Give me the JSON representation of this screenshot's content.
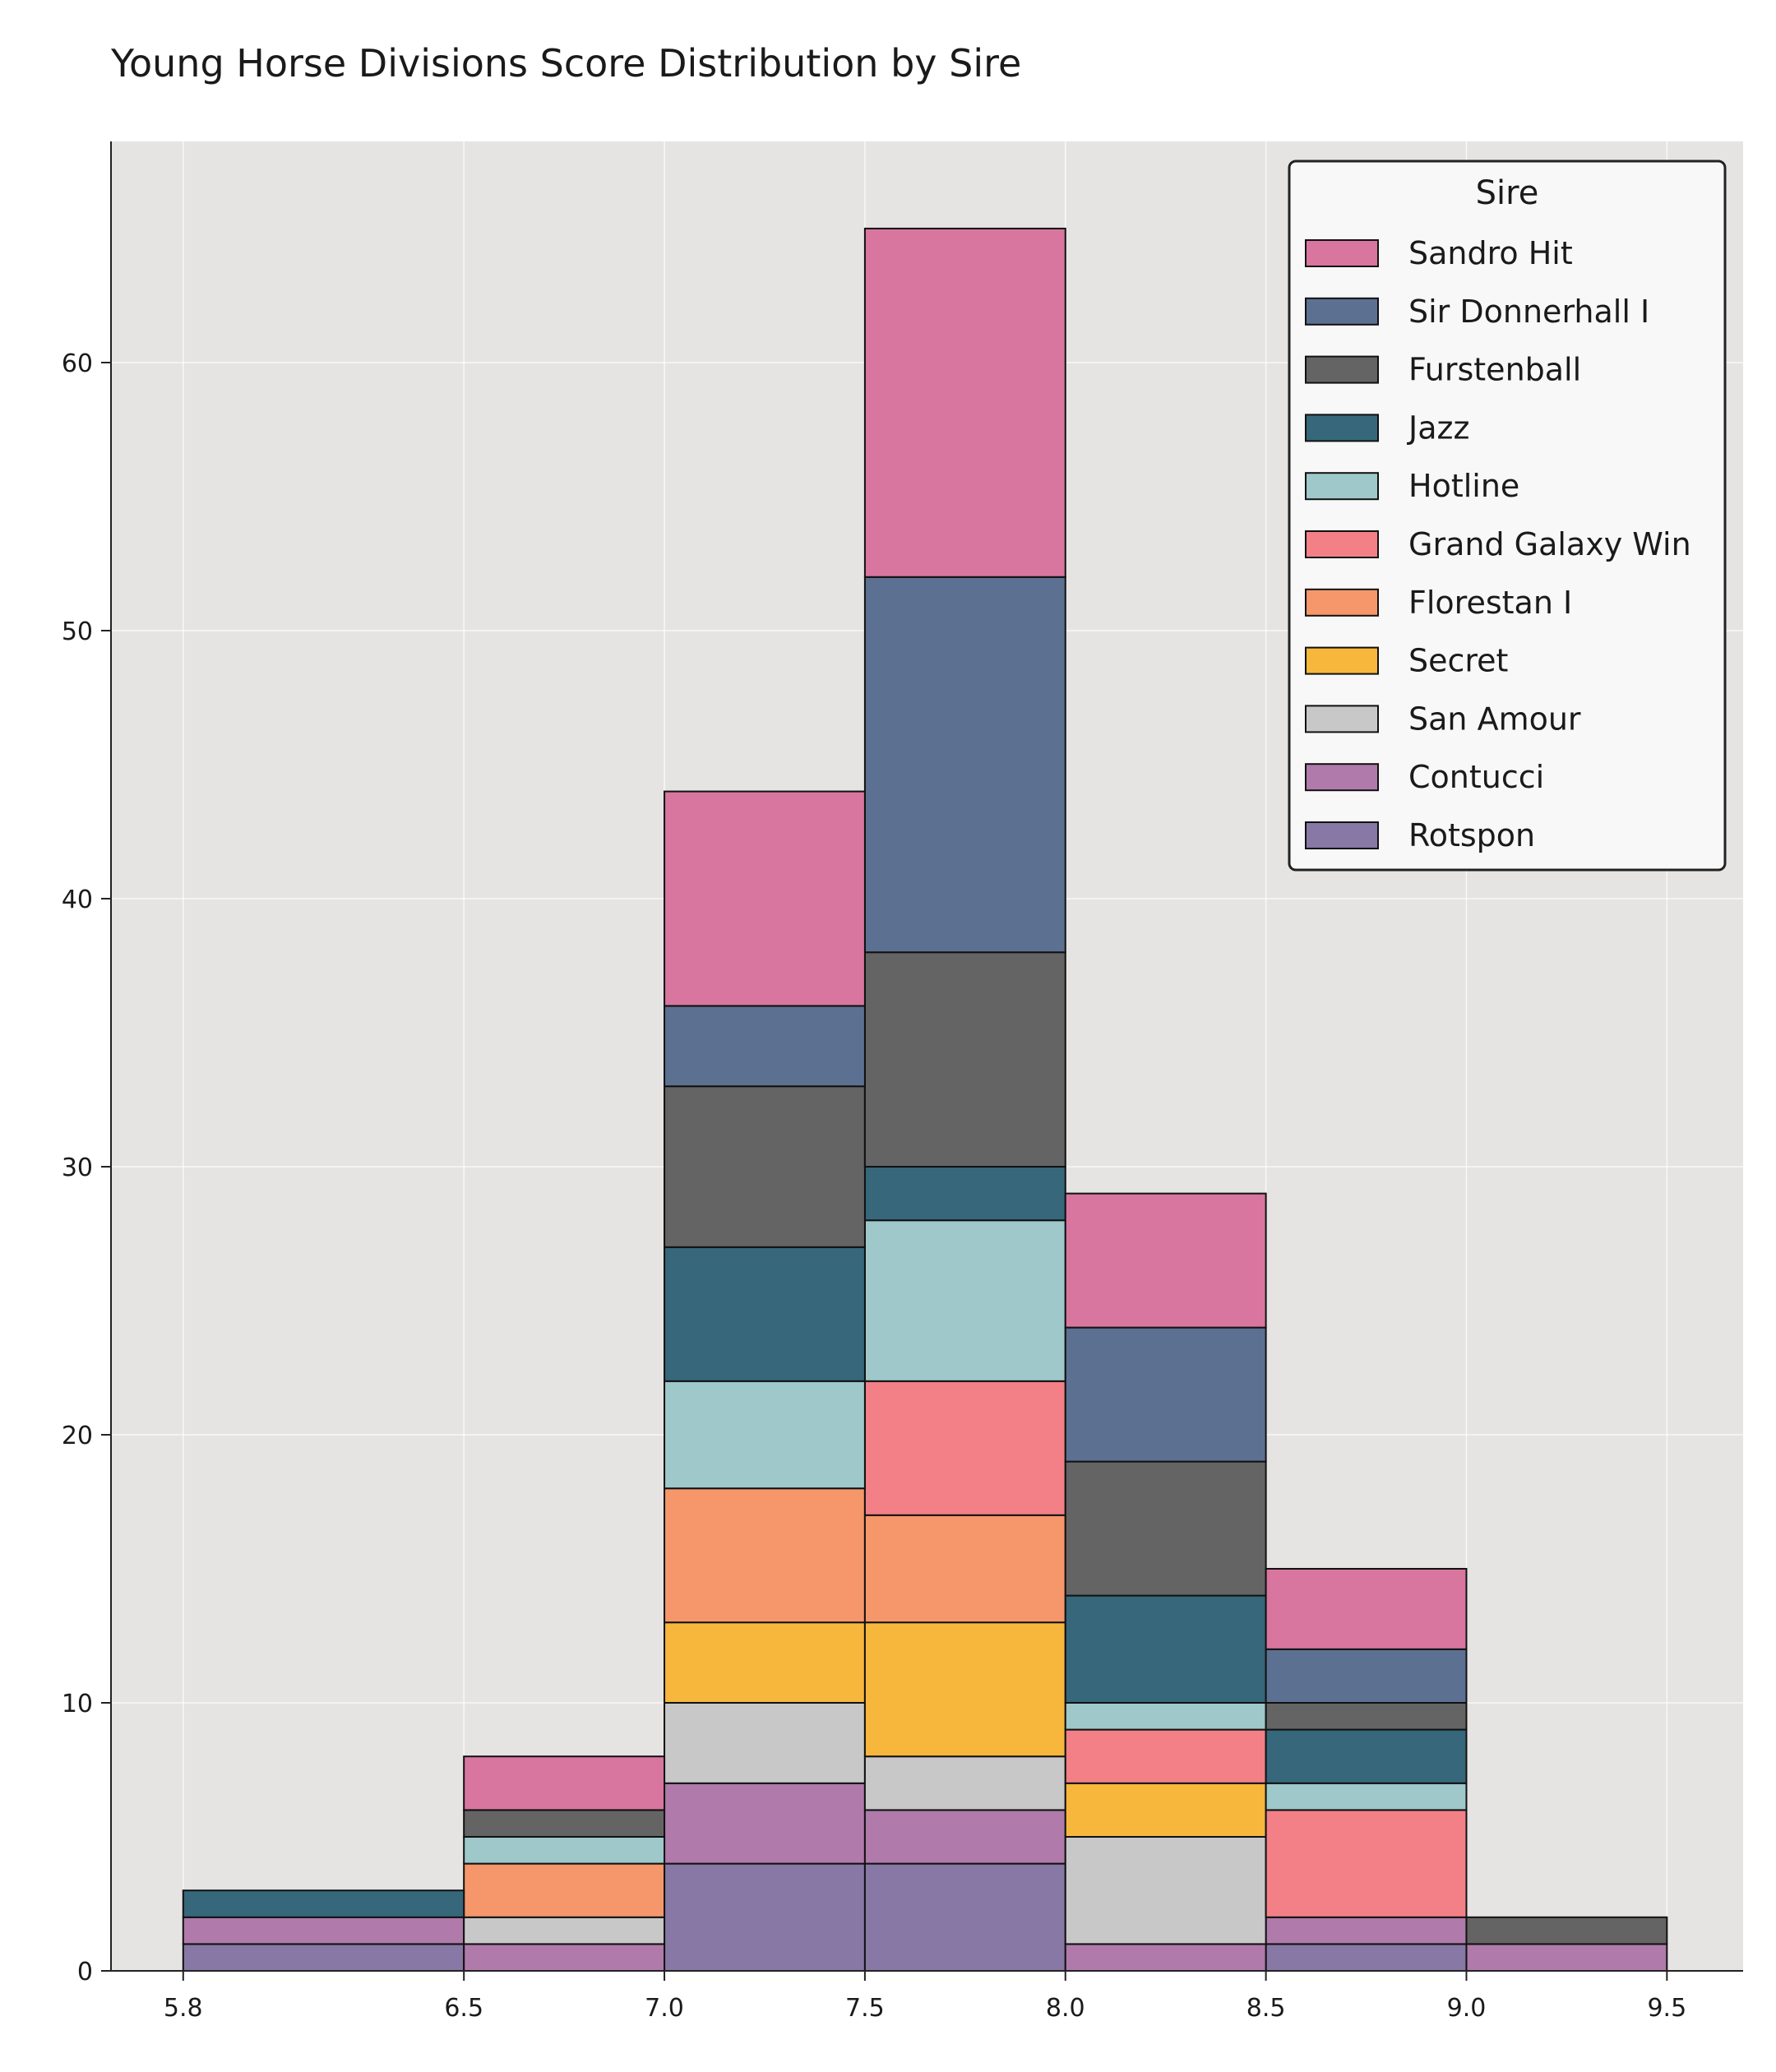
{
  "chart_data": {
    "type": "bar",
    "title": "Young Horse Divisions Score Distribution by Sire",
    "xlabel": "",
    "ylabel": "",
    "stacked": true,
    "bin_edges": [
      5.8,
      6.5,
      7.0,
      7.5,
      8.0,
      8.5,
      9.0,
      9.5
    ],
    "x_tick_labels": [
      "5.8",
      "6.5",
      "7.0",
      "7.5",
      "8.0",
      "8.5",
      "9.0",
      "9.5"
    ],
    "xlim": [
      5.62,
      9.69
    ],
    "ylim": [
      0,
      68.25
    ],
    "y_ticks": [
      0,
      10,
      20,
      30,
      40,
      50,
      60
    ],
    "y_tick_labels": [
      "0",
      "10",
      "20",
      "30",
      "40",
      "50",
      "60"
    ],
    "grid": true,
    "legend_title": "Sire",
    "legend_position": "top-right",
    "series": [
      {
        "name": "Rotspon",
        "color": "#8878a5",
        "values": [
          1,
          0,
          4,
          4,
          0,
          1,
          0
        ]
      },
      {
        "name": "Contucci",
        "color": "#b07aab",
        "values": [
          1,
          1,
          3,
          2,
          1,
          1,
          1
        ]
      },
      {
        "name": "San Amour",
        "color": "#c8c8c8",
        "values": [
          0,
          1,
          3,
          2,
          4,
          0,
          0
        ]
      },
      {
        "name": "Secret",
        "color": "#f7b73c",
        "values": [
          0,
          0,
          3,
          5,
          2,
          0,
          0
        ]
      },
      {
        "name": "Florestan I",
        "color": "#f5976a",
        "values": [
          0,
          2,
          5,
          4,
          0,
          0,
          0
        ]
      },
      {
        "name": "Grand Galaxy Win",
        "color": "#f28086",
        "values": [
          0,
          0,
          0,
          5,
          2,
          4,
          0
        ]
      },
      {
        "name": "Hotline",
        "color": "#9ec8ca",
        "values": [
          0,
          1,
          4,
          6,
          1,
          1,
          0
        ]
      },
      {
        "name": "Jazz",
        "color": "#36677b",
        "values": [
          1,
          0,
          5,
          2,
          4,
          2,
          0
        ]
      },
      {
        "name": "Furstenball",
        "color": "#646464",
        "values": [
          0,
          1,
          6,
          8,
          5,
          1,
          1
        ]
      },
      {
        "name": "Sir Donnerhall I",
        "color": "#5c7092",
        "values": [
          0,
          0,
          3,
          14,
          5,
          2,
          0
        ]
      },
      {
        "name": "Sandro Hit",
        "color": "#d8769f",
        "values": [
          0,
          2,
          8,
          13,
          5,
          3,
          0
        ]
      }
    ],
    "legend_order": [
      "Sandro Hit",
      "Sir Donnerhall I",
      "Furstenball",
      "Jazz",
      "Hotline",
      "Grand Galaxy Win",
      "Florestan I",
      "Secret",
      "San Amour",
      "Contucci",
      "Rotspon"
    ]
  }
}
